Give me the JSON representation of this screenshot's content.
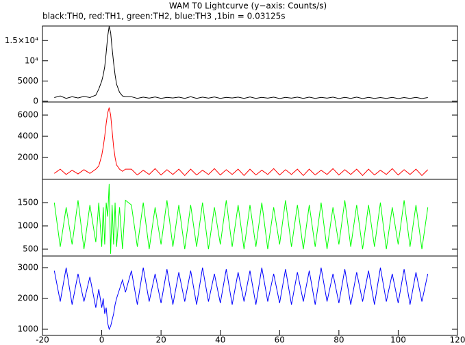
{
  "title": "WAM T0 Lightcurve (y−axis: Counts/s)",
  "subtitle": "black:TH0, red:TH1, green:TH2, blue:TH3 ,1bin = 0.03125s",
  "chart_data": [
    {
      "type": "line",
      "x": [
        -16,
        -14,
        -12,
        -10,
        -8,
        -6,
        -4,
        -2,
        -1,
        0,
        0.5,
        1,
        1.5,
        2,
        2.5,
        3,
        3.5,
        4,
        4.5,
        5,
        6,
        7,
        8,
        10,
        12,
        14,
        16,
        18,
        20,
        22,
        24,
        26,
        28,
        30,
        32,
        34,
        36,
        38,
        40,
        42,
        44,
        46,
        48,
        50,
        52,
        54,
        56,
        58,
        60,
        62,
        64,
        66,
        68,
        70,
        72,
        74,
        76,
        78,
        80,
        82,
        84,
        86,
        88,
        90,
        92,
        94,
        96,
        98,
        100,
        102,
        104,
        106,
        108,
        110
      ],
      "xlim": [
        -20,
        120
      ],
      "ylim": [
        -200,
        18600
      ],
      "yticks": [
        0,
        5000,
        {
          "value": 10000,
          "label": "10⁴"
        },
        {
          "value": 15000,
          "label": "1.5×10⁴"
        }
      ],
      "series": [
        {
          "color": "#000000",
          "values": [
            900,
            1300,
            700,
            1100,
            800,
            1200,
            900,
            1500,
            3000,
            5000,
            6500,
            8500,
            12000,
            16000,
            18500,
            17000,
            13000,
            9500,
            6500,
            4200,
            2200,
            1300,
            1100,
            1100,
            700,
            1000,
            750,
            1050,
            700,
            950,
            800,
            1000,
            700,
            1100,
            700,
            1000,
            750,
            1050,
            700,
            950,
            800,
            1000,
            700,
            1050,
            700,
            950,
            750,
            1000,
            650,
            950,
            750,
            1000,
            700,
            1000,
            700,
            950,
            750,
            1000,
            650,
            950,
            700,
            1000,
            650,
            950,
            700,
            900,
            700,
            950,
            650,
            900,
            700,
            950,
            650,
            900
          ]
        }
      ]
    },
    {
      "type": "line",
      "x": [
        -16,
        -14,
        -12,
        -10,
        -8,
        -6,
        -4,
        -2,
        -1,
        0,
        0.5,
        1,
        1.5,
        2,
        2.5,
        3,
        3.5,
        4,
        4.5,
        5,
        6,
        7,
        8,
        10,
        12,
        14,
        16,
        18,
        20,
        22,
        24,
        26,
        28,
        30,
        32,
        34,
        36,
        38,
        40,
        42,
        44,
        46,
        48,
        50,
        52,
        54,
        56,
        58,
        60,
        62,
        64,
        66,
        68,
        70,
        72,
        74,
        76,
        78,
        80,
        82,
        84,
        86,
        88,
        90,
        92,
        94,
        96,
        98,
        100,
        102,
        104,
        106,
        108,
        110
      ],
      "xlim": [
        -20,
        120
      ],
      "ylim": [
        -60,
        7230
      ],
      "yticks": [
        2000,
        4000,
        6000
      ],
      "series": [
        {
          "color": "#ff0000",
          "values": [
            500,
            900,
            400,
            800,
            450,
            850,
            500,
            900,
            1200,
            2200,
            3000,
            4000,
            5200,
            6200,
            6700,
            6000,
            4500,
            3000,
            2000,
            1300,
            900,
            700,
            900,
            900,
            350,
            800,
            400,
            950,
            350,
            850,
            400,
            900,
            300,
            900,
            350,
            800,
            400,
            950,
            350,
            850,
            400,
            900,
            300,
            900,
            350,
            800,
            400,
            950,
            350,
            850,
            400,
            900,
            300,
            900,
            350,
            800,
            400,
            950,
            350,
            850,
            400,
            900,
            300,
            900,
            350,
            800,
            400,
            950,
            350,
            850,
            400,
            900,
            300,
            850
          ]
        }
      ]
    },
    {
      "type": "line",
      "x": [
        -16,
        -14,
        -12,
        -10,
        -8,
        -6,
        -4,
        -2,
        -1,
        0,
        0.5,
        1,
        1.5,
        2,
        2.5,
        3,
        3.5,
        4,
        4.5,
        5,
        6,
        7,
        8,
        10,
        12,
        14,
        16,
        18,
        20,
        22,
        24,
        26,
        28,
        30,
        32,
        34,
        36,
        38,
        40,
        42,
        44,
        46,
        48,
        50,
        52,
        54,
        56,
        58,
        60,
        62,
        64,
        66,
        68,
        70,
        72,
        74,
        76,
        78,
        80,
        82,
        84,
        86,
        88,
        90,
        92,
        94,
        96,
        98,
        100,
        102,
        104,
        106,
        108,
        110
      ],
      "xlim": [
        -20,
        120
      ],
      "ylim": [
        353,
        2000
      ],
      "yticks": [
        500,
        1000,
        1500
      ],
      "series": [
        {
          "color": "#00ff00",
          "values": [
            1500,
            550,
            1400,
            600,
            1550,
            500,
            1450,
            650,
            1500,
            550,
            1400,
            600,
            1500,
            1200,
            1900,
            400,
            1450,
            600,
            1500,
            550,
            1400,
            500,
            1550,
            1450,
            550,
            1500,
            500,
            1400,
            600,
            1550,
            550,
            1450,
            500,
            1450,
            550,
            1500,
            500,
            1400,
            600,
            1550,
            550,
            1450,
            500,
            1450,
            550,
            1500,
            500,
            1400,
            600,
            1550,
            550,
            1450,
            500,
            1450,
            550,
            1500,
            500,
            1400,
            600,
            1550,
            550,
            1450,
            500,
            1450,
            550,
            1500,
            500,
            1400,
            600,
            1550,
            550,
            1450,
            500,
            1400
          ]
        }
      ]
    },
    {
      "type": "line",
      "x": [
        -16,
        -14,
        -12,
        -10,
        -8,
        -6,
        -4,
        -2,
        -1,
        0,
        0.5,
        1,
        1.5,
        2,
        2.5,
        3,
        3.5,
        4,
        4.5,
        5,
        6,
        7,
        8,
        10,
        12,
        14,
        16,
        18,
        20,
        22,
        24,
        26,
        28,
        30,
        32,
        34,
        36,
        38,
        40,
        42,
        44,
        46,
        48,
        50,
        52,
        54,
        56,
        58,
        60,
        62,
        64,
        66,
        68,
        70,
        72,
        74,
        76,
        78,
        80,
        82,
        84,
        86,
        88,
        90,
        92,
        94,
        96,
        98,
        100,
        102,
        104,
        106,
        108,
        110
      ],
      "xlim": [
        -20,
        120
      ],
      "ylim": [
        800,
        3378
      ],
      "yticks": [
        1000,
        2000,
        3000
      ],
      "xticks": [
        -20,
        0,
        20,
        40,
        60,
        80,
        100,
        120
      ],
      "series": [
        {
          "color": "#0000ff",
          "values": [
            2900,
            1900,
            3000,
            1800,
            2800,
            1900,
            2700,
            1700,
            2300,
            1700,
            2000,
            1500,
            1700,
            1200,
            1000,
            1100,
            1300,
            1500,
            1800,
            2000,
            2300,
            2600,
            2200,
            2900,
            1800,
            3000,
            1900,
            2800,
            1850,
            2950,
            1800,
            2850,
            1900,
            2900,
            1800,
            3000,
            1900,
            2800,
            1850,
            2950,
            1800,
            2850,
            1900,
            2900,
            1800,
            3000,
            1900,
            2800,
            1850,
            2950,
            1800,
            2850,
            1900,
            2900,
            1800,
            3000,
            1900,
            2800,
            1850,
            2950,
            1800,
            2850,
            1900,
            2900,
            1800,
            3000,
            1900,
            2800,
            1850,
            2950,
            1800,
            2850,
            1900,
            2800
          ]
        }
      ]
    }
  ]
}
